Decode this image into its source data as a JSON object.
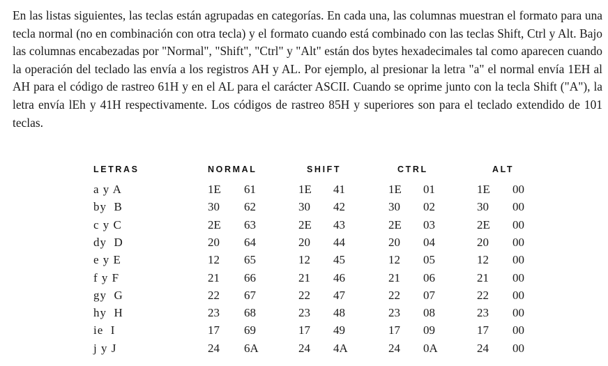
{
  "paragraph": "En las listas siguientes, las teclas están agrupadas en categorías. En cada una, las columnas muestran el formato para una tecla normal (no en combinación con otra tecla) y el formato cuando está combinado con las teclas Shift, Ctrl y Alt. Bajo las columnas encabezadas por \"Normal\", \"Shift\", \"Ctrl\" y \"Alt\" están dos bytes hexadecimales tal como aparecen cuando la operación del teclado las envía a los registros AH y AL. Por ejemplo, al presionar la letra \"a\"  el normal envía 1EH al AH para el código de rastreo 61H y en el AL para el carácter ASCII. Cuando se oprime junto con la tecla Shift (\"A\"), la letra envía lEh y 41H respectivamente. Los códigos de rastreo 85H y superiores son para el teclado extendido de 101 teclas.",
  "table": {
    "headers": [
      "LETRAS",
      "NORMAL",
      "SHIFT",
      "CTRL",
      "ALT"
    ],
    "rows": [
      [
        "a y A",
        "1E",
        "61",
        "1E",
        "41",
        "1E",
        "01",
        "1E",
        "00"
      ],
      [
        "by  B",
        "30",
        "62",
        "30",
        "42",
        "30",
        "02",
        "30",
        "00"
      ],
      [
        "c y C",
        "2E",
        "63",
        "2E",
        "43",
        "2E",
        "03",
        "2E",
        "00"
      ],
      [
        "dy  D",
        "20",
        "64",
        "20",
        "44",
        "20",
        "04",
        "20",
        "00"
      ],
      [
        "e y E",
        "12",
        "65",
        "12",
        "45",
        "12",
        "05",
        "12",
        "00"
      ],
      [
        "f y F",
        "21",
        "66",
        "21",
        "46",
        "21",
        "06",
        "21",
        "00"
      ],
      [
        "gy  G",
        "22",
        "67",
        "22",
        "47",
        "22",
        "07",
        "22",
        "00"
      ],
      [
        "hy  H",
        "23",
        "68",
        "23",
        "48",
        "23",
        "08",
        "23",
        "00"
      ],
      [
        "ie  I",
        "17",
        "69",
        "17",
        "49",
        "17",
        "09",
        "17",
        "00"
      ],
      [
        "j y J",
        "24",
        "6A",
        "24",
        "4A",
        "24",
        "0A",
        "24",
        "00"
      ]
    ]
  }
}
